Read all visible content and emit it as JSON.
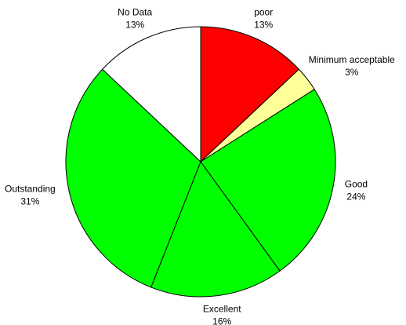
{
  "chart_data": {
    "type": "pie",
    "categories": [
      "poor",
      "Minimum acceptable",
      "Good",
      "Excellent",
      "Outstanding",
      "No Data"
    ],
    "values": [
      13,
      3,
      24,
      16,
      31,
      13
    ],
    "value_labels": [
      "13%",
      "3%",
      "24%",
      "16%",
      "31%",
      "13%"
    ],
    "colors": [
      "#ff0000",
      "#ffff99",
      "#00ff00",
      "#00ff00",
      "#00ff00",
      "#ffffff"
    ]
  }
}
